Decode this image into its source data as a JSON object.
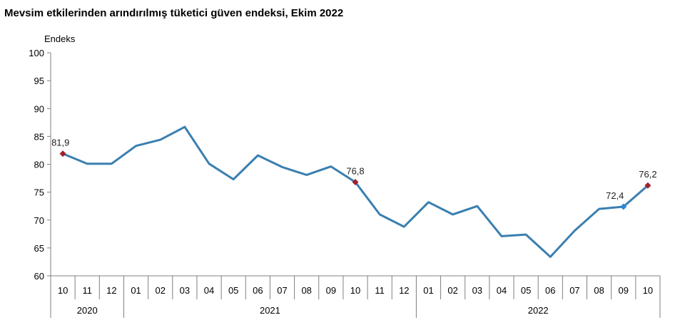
{
  "chart_data": {
    "type": "line",
    "title": "Mevsim etkilerinden arındırılmış tüketici güven endeksi, Ekim 2022",
    "ylabel": "Endeks",
    "xlabel": "",
    "ylim": [
      60,
      100
    ],
    "yticks": [
      60,
      65,
      70,
      75,
      80,
      85,
      90,
      95,
      100
    ],
    "grid": false,
    "legend": "none",
    "line_color": "#3a7fb0",
    "marker_color": "#a0202a",
    "highlight_color": "#2e86d6",
    "categories": [
      "10",
      "11",
      "12",
      "01",
      "02",
      "03",
      "04",
      "05",
      "06",
      "07",
      "08",
      "09",
      "10",
      "11",
      "12",
      "01",
      "02",
      "03",
      "04",
      "05",
      "06",
      "07",
      "08",
      "09",
      "10"
    ],
    "years": [
      {
        "label": "2020",
        "start": 0,
        "end": 2
      },
      {
        "label": "2021",
        "start": 3,
        "end": 14
      },
      {
        "label": "2022",
        "start": 15,
        "end": 24
      }
    ],
    "series": [
      {
        "values": [
          81.9,
          80.1,
          80.1,
          83.3,
          84.4,
          86.7,
          80.1,
          77.3,
          81.6,
          79.5,
          78.1,
          79.6,
          76.8,
          71.0,
          68.8,
          73.2,
          71.0,
          72.5,
          67.1,
          67.4,
          63.4,
          68.1,
          72.0,
          72.4,
          76.2
        ]
      }
    ],
    "labels": [
      {
        "index": 0,
        "text": "81,9",
        "marker": "red"
      },
      {
        "index": 12,
        "text": "76,8",
        "marker": "red"
      },
      {
        "index": 23,
        "text": "72,4",
        "marker": "blue"
      },
      {
        "index": 24,
        "text": "76,2",
        "marker": "red"
      }
    ]
  }
}
